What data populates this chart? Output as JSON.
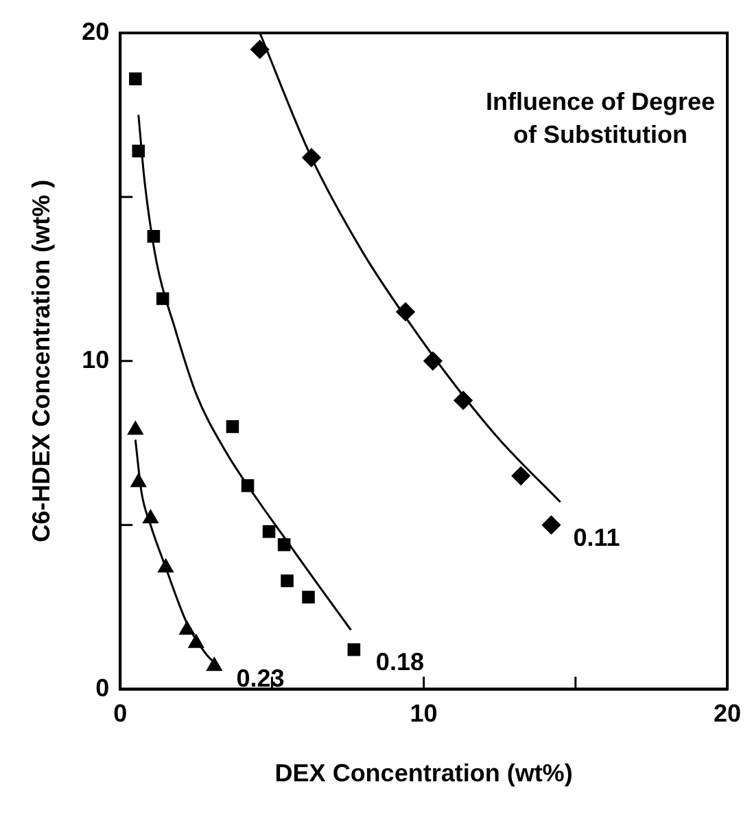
{
  "chart_data": {
    "type": "scatter",
    "title": "Influence of Degree of Substitution",
    "xlabel": "DEX Concentration (wt%)",
    "ylabel": "C6-HDEX Concentration (wt% )",
    "xlim": [
      0,
      20
    ],
    "ylim": [
      0,
      20
    ],
    "xticks": [
      0,
      {
        "value": 5,
        "label": null
      },
      10,
      {
        "value": 15,
        "label": null
      },
      20
    ],
    "yticks": [
      0,
      {
        "value": 5,
        "label": null
      },
      10,
      {
        "value": 15,
        "label": null
      },
      20
    ],
    "grid": false,
    "legend": false,
    "series": [
      {
        "name": "0.11",
        "color": "#000000",
        "marker": "diamond",
        "x": [
          4.6,
          6.3,
          9.4,
          10.3,
          11.3,
          13.2,
          14.2
        ],
        "values": [
          19.5,
          16.2,
          11.5,
          10.0,
          8.8,
          6.5,
          5.0
        ]
      },
      {
        "name": "0.18",
        "color": "#000000",
        "marker": "square",
        "x": [
          0.5,
          0.6,
          1.1,
          1.4,
          3.7,
          4.2,
          4.9,
          5.4,
          5.5,
          6.2,
          7.7
        ],
        "values": [
          18.6,
          16.4,
          13.8,
          11.9,
          8.0,
          6.2,
          4.8,
          4.4,
          3.3,
          2.8,
          1.2
        ]
      },
      {
        "name": "0.23",
        "color": "#000000",
        "marker": "triangle",
        "x": [
          0.5,
          0.6,
          1.0,
          1.5,
          2.2,
          2.5,
          3.1
        ],
        "values": [
          7.9,
          6.3,
          5.2,
          3.7,
          1.8,
          1.4,
          0.7
        ]
      },
      {
        "type": "line",
        "color": "#000000",
        "marker": "none",
        "x": [
          4.6,
          6.3,
          8.0,
          9.5,
          11.0,
          12.5,
          14.5
        ],
        "values": [
          20.0,
          16.2,
          13.3,
          11.2,
          9.3,
          7.6,
          5.7
        ]
      },
      {
        "type": "line",
        "color": "#000000",
        "marker": "none",
        "x": [
          0.6,
          0.8,
          1.2,
          1.8,
          2.5,
          3.5,
          4.5,
          5.5,
          6.5,
          7.6
        ],
        "values": [
          17.5,
          15.5,
          13.0,
          11.0,
          9.0,
          7.2,
          5.8,
          4.5,
          3.2,
          1.8
        ]
      },
      {
        "type": "line",
        "color": "#000000",
        "marker": "none",
        "x": [
          0.5,
          0.7,
          1.0,
          1.5,
          2.2,
          2.8,
          3.1
        ],
        "values": [
          7.6,
          6.0,
          5.0,
          3.7,
          2.0,
          1.1,
          0.8
        ]
      }
    ]
  }
}
